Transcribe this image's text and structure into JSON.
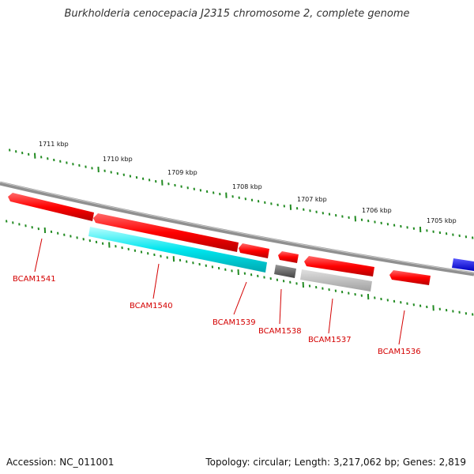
{
  "title": "Burkholderia cenocepacia J2315 chromosome 2, complete genome",
  "footer": {
    "accession": "Accession: NC_011001",
    "summary": "Topology: circular; Length: 3,217,062 bp; Genes: 2,819"
  },
  "scale_labels": [
    "1711 kbp",
    "1710 kbp",
    "1709 kbp",
    "1708 kbp",
    "1707 kbp",
    "1706 kbp",
    "1705 kbp"
  ],
  "genes": [
    {
      "name": "BCAM1541",
      "color": "#ff0000"
    },
    {
      "name": "BCAM1540",
      "color": "#ff0000"
    },
    {
      "name": "BCAM1539",
      "color": "#ff0000"
    },
    {
      "name": "BCAM1538",
      "color": "#ff0000"
    },
    {
      "name": "BCAM1537",
      "color": "#ff0000"
    },
    {
      "name": "BCAM1536",
      "color": "#ff0000"
    }
  ],
  "colors": {
    "forward_feature": "#ff0000",
    "cds_track": "#00e5ee",
    "rna_track_dark": "#666666",
    "rna_track_light": "#bbbbbb",
    "scale_ticks": "#228b22",
    "backbone": "#808080",
    "blue_feature": "#0000ff",
    "label": "#d40000"
  }
}
